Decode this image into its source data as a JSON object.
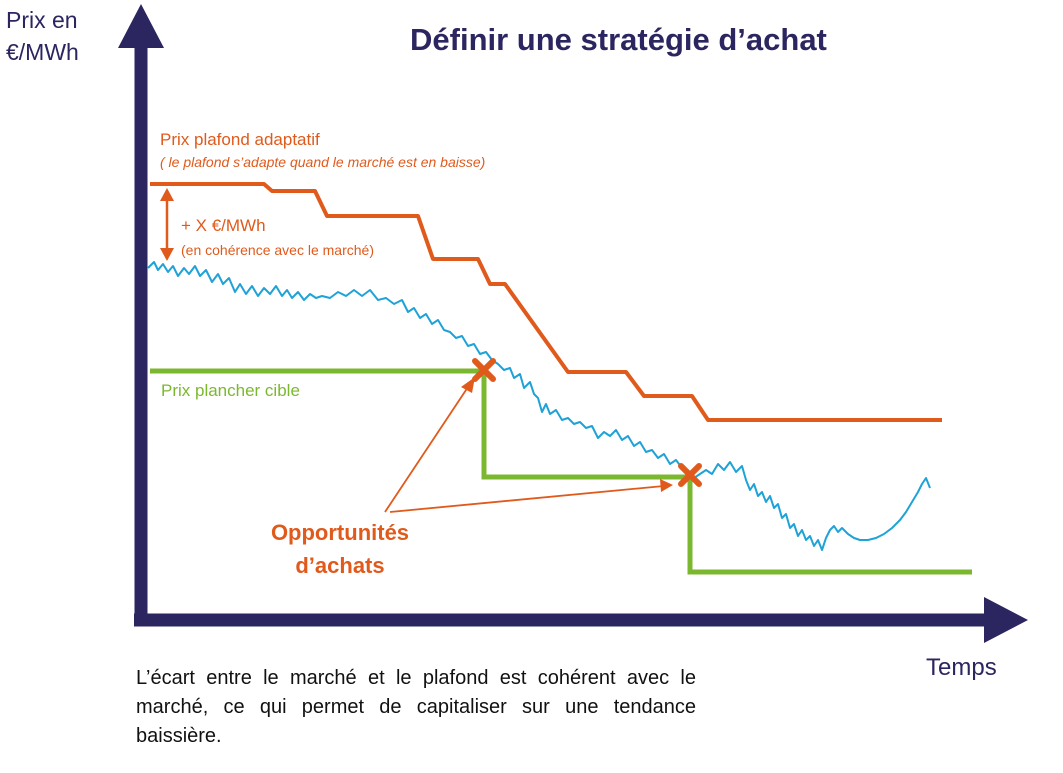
{
  "title": "Définir une stratégie d’achat",
  "y_axis_label": "Prix en €/MWh",
  "y_axis_label_lines": [
    "Prix en",
    "€/MWh"
  ],
  "x_axis_label": "Temps",
  "cap": {
    "label": "Prix plafond adaptatif",
    "note": "( le plafond s’adapte quand le marché est en baisse)",
    "color": "#e05a1c"
  },
  "spread": {
    "label": "+ X €/MWh",
    "note": "(en cohérence avec le marché)"
  },
  "floor": {
    "label": "Prix plancher cible",
    "color": "#7cb82f"
  },
  "opportunities": {
    "label_lines": [
      "Opportunités",
      "d’achats"
    ],
    "marker": "cross-icon",
    "count": 2
  },
  "market_line_color": "#1fa3d6",
  "axis_color": "#2b2560",
  "footer_note": "L’écart entre le marché et le plafond est cohérent avec le marché, ce qui permet de capitaliser sur une tendance baissière."
}
